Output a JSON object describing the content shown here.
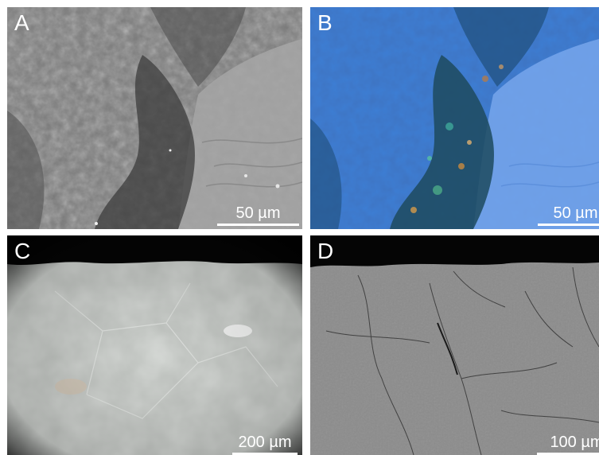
{
  "panels": [
    {
      "letter": "A",
      "scale_label": "50 µm",
      "image": "grayscale electron micrograph of a fractured surface with granular dark band and smooth lighter region"
    },
    {
      "letter": "B",
      "scale_label": "50 µm",
      "image": "false-color blue micrograph of the same area with orange, green and teal mineral grains along the dark band"
    },
    {
      "letter": "C",
      "scale_label": "200 µm",
      "image": "optical cross-section of a pale translucent crystalline material against a black background"
    },
    {
      "letter": "D",
      "scale_label": "100 µm",
      "image": "grayscale cross-section with fine crack network below a dark top edge"
    }
  ]
}
